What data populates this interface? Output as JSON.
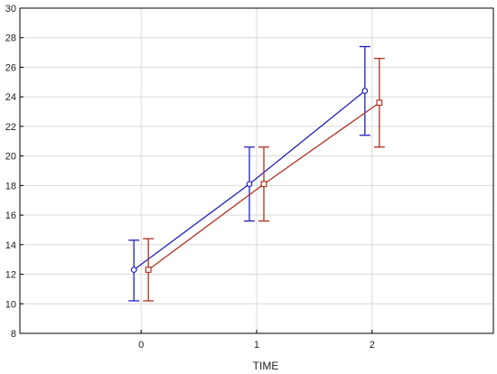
{
  "chart_data": {
    "type": "line",
    "title": "",
    "xlabel": "TIME",
    "ylabel": "",
    "categories": [
      "0",
      "1",
      "2"
    ],
    "x_values": [
      0,
      1,
      2
    ],
    "xlim": [
      -1.05,
      3.05
    ],
    "ylim": [
      8,
      30
    ],
    "yticks": [
      8,
      10,
      12,
      14,
      16,
      18,
      20,
      22,
      24,
      26,
      28,
      30
    ],
    "grid": true,
    "legend": "none",
    "series": [
      {
        "marker": "circle",
        "color": "#2020c0",
        "values": [
          12.3,
          18.1,
          24.4
        ],
        "error_low": [
          10.2,
          15.6,
          21.4
        ],
        "error_high": [
          14.3,
          20.6,
          27.4
        ]
      },
      {
        "marker": "square",
        "color": "#b03020",
        "values": [
          12.3,
          18.1,
          23.6
        ],
        "error_low": [
          10.2,
          15.6,
          20.6
        ],
        "error_high": [
          14.4,
          20.6,
          26.6
        ]
      }
    ]
  }
}
